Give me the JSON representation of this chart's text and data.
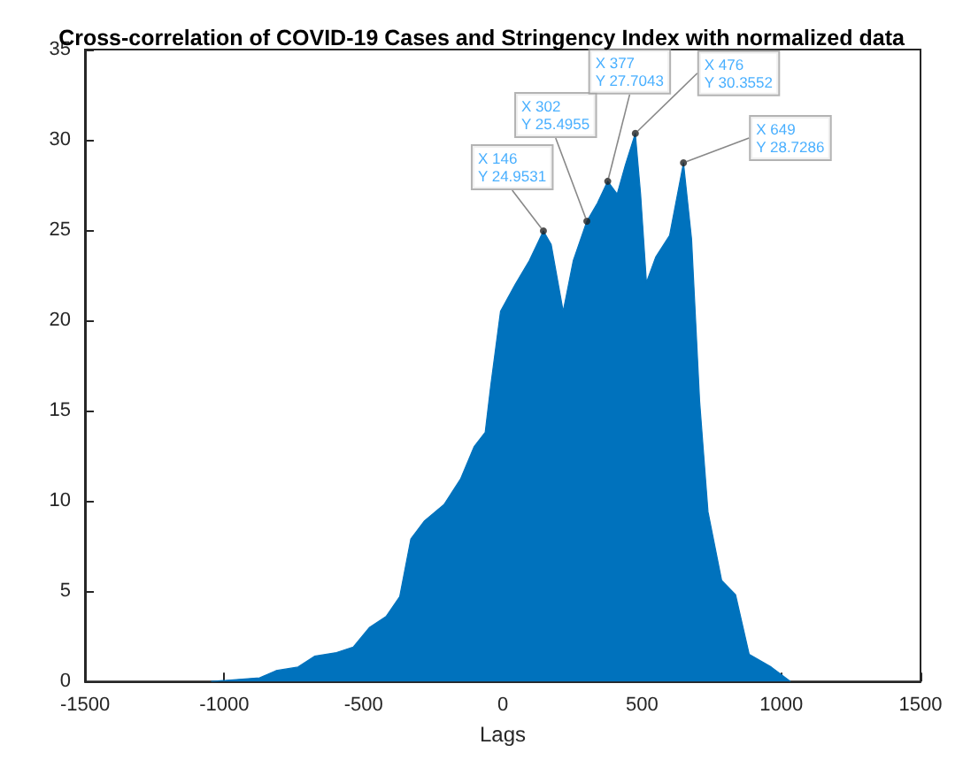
{
  "chart_data": {
    "type": "area",
    "title": "Cross-correlation of COVID-19 Cases and Stringency Index with normalized data",
    "xlabel": "Lags",
    "x": [
      -1047,
      -873,
      -814,
      -735,
      -676,
      -597,
      -537,
      -478,
      -419,
      -370,
      -330,
      -281,
      -211,
      -152,
      -103,
      -63,
      -43,
      -8,
      45,
      95,
      146,
      174,
      217,
      253,
      302,
      340,
      377,
      411,
      440,
      476,
      495,
      516,
      549,
      599,
      649,
      678,
      707,
      737,
      786,
      836,
      885,
      964,
      1033
    ],
    "series": [
      {
        "color": "#0072bd",
        "values": [
          0,
          0.2,
          0.6,
          0.8,
          1.4,
          1.6,
          1.9,
          3.0,
          3.6,
          4.7,
          7.9,
          8.9,
          9.8,
          11.2,
          13.0,
          13.8,
          16.4,
          20.5,
          22.0,
          23.3,
          24.9531,
          24.2,
          20.5,
          23.3,
          25.4955,
          26.5,
          27.7043,
          27.0,
          28.6,
          30.3552,
          27.0,
          22.1,
          23.5,
          24.7,
          28.7286,
          24.5,
          15.5,
          9.4,
          5.6,
          4.8,
          1.5,
          0.8,
          0
        ]
      }
    ],
    "annotations": [
      {
        "text": "X 146\nY 24.9531",
        "x": 146,
        "y": 24.9531
      },
      {
        "text": "X 302\nY 25.4955",
        "x": 302,
        "y": 25.4955
      },
      {
        "text": "X 377\nY 27.7043",
        "x": 377,
        "y": 27.7043
      },
      {
        "text": "X 476\nY 30.3552",
        "x": 476,
        "y": 30.3552
      },
      {
        "text": "X 649\nY 28.7286",
        "x": 649,
        "y": 28.7286
      }
    ],
    "xlim": [
      -1500,
      1500
    ],
    "xticks": [
      -1500,
      -1000,
      -500,
      0,
      500,
      1000,
      1500
    ],
    "ylim": [
      0,
      35
    ],
    "yticks": [
      0,
      5,
      10,
      15,
      20,
      25,
      30,
      35
    ],
    "grid": false
  }
}
